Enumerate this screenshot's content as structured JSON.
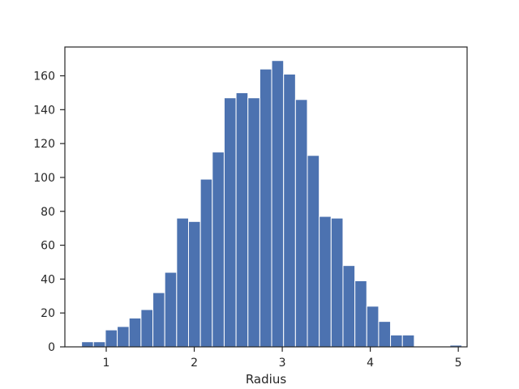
{
  "chart_data": {
    "type": "bar",
    "title": "",
    "xlabel": "Radius",
    "ylabel": "",
    "xlim": [
      0.53,
      5.1
    ],
    "ylim": [
      0,
      177
    ],
    "xticks": [
      1,
      2,
      3,
      4,
      5
    ],
    "yticks": [
      0,
      20,
      40,
      60,
      80,
      100,
      120,
      140,
      160
    ],
    "bin_start": 0.72,
    "bin_width": 0.135,
    "values": [
      3,
      3,
      10,
      12,
      17,
      22,
      32,
      44,
      76,
      74,
      99,
      115,
      147,
      150,
      147,
      164,
      169,
      161,
      146,
      113,
      77,
      76,
      48,
      39,
      24,
      15,
      7,
      7,
      0,
      0,
      0,
      1
    ],
    "bar_color": "#4c72b0",
    "grid": false,
    "legend": "none"
  }
}
